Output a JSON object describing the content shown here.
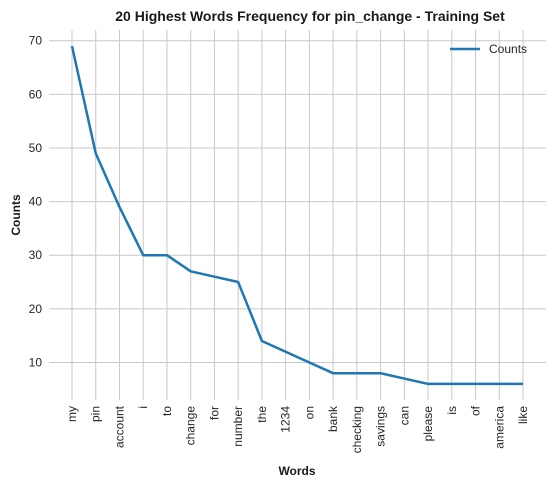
{
  "chart_data": {
    "type": "line",
    "title": "20 Highest Words Frequency for pin_change - Training Set",
    "xlabel": "Words",
    "ylabel": "Counts",
    "categories": [
      "my",
      "pin",
      "account",
      "i",
      "to",
      "change",
      "for",
      "number",
      "the",
      "1234",
      "on",
      "bank",
      "checking",
      "savings",
      "can",
      "please",
      "is",
      "of",
      "america",
      "like"
    ],
    "series": [
      {
        "name": "Counts",
        "values": [
          69,
          49,
          39,
          30,
          30,
          27,
          26,
          25,
          14,
          12,
          10,
          8,
          8,
          8,
          7,
          6,
          6,
          6,
          6,
          6
        ],
        "color": "#1f77b4"
      }
    ],
    "yticks": [
      10,
      20,
      30,
      40,
      50,
      60,
      70
    ],
    "ylim": [
      3.0,
      72.0
    ],
    "grid": true,
    "legend": "top-right"
  }
}
